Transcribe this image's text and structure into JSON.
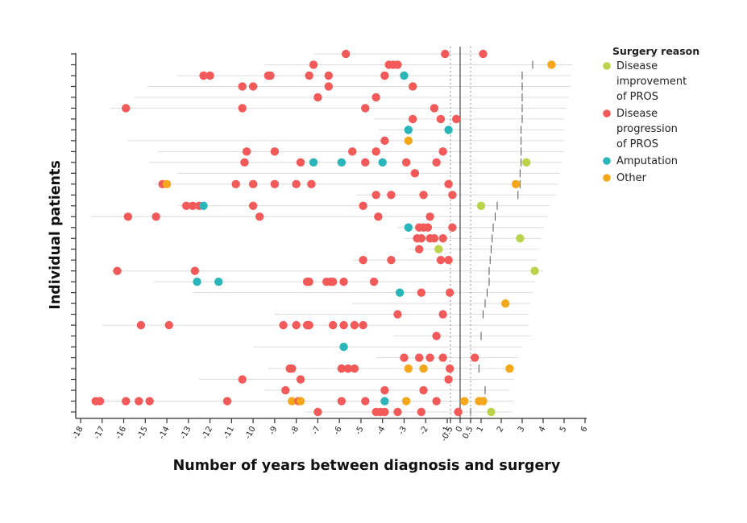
{
  "chart_data": {
    "type": "scatter",
    "xlabel": "Number of years between diagnosis and surgery",
    "ylabel": "Individual patients",
    "xticks": [
      {
        "v": -18,
        "label": "-18"
      },
      {
        "v": -17,
        "label": "-17"
      },
      {
        "v": -16,
        "label": "-16"
      },
      {
        "v": -15,
        "label": "-15"
      },
      {
        "v": -14,
        "label": "-14"
      },
      {
        "v": -13,
        "label": "-13"
      },
      {
        "v": -12,
        "label": "-12"
      },
      {
        "v": -11,
        "label": "-11"
      },
      {
        "v": -10,
        "label": "-10"
      },
      {
        "v": -9,
        "label": "-9"
      },
      {
        "v": -8,
        "label": "-8"
      },
      {
        "v": -7,
        "label": "-7"
      },
      {
        "v": -6,
        "label": "-6"
      },
      {
        "v": -5,
        "label": "-5"
      },
      {
        "v": -4,
        "label": "-4"
      },
      {
        "v": -3,
        "label": "-3"
      },
      {
        "v": -2,
        "label": "-2"
      },
      {
        "v": -1,
        "label": "-1"
      },
      {
        "v": -0.5,
        "label": "-0.5"
      },
      {
        "v": 0,
        "label": "0"
      },
      {
        "v": 0.5,
        "label": "0.5"
      },
      {
        "v": 1,
        "label": "1"
      },
      {
        "v": 2,
        "label": "2"
      },
      {
        "v": 3,
        "label": "3"
      },
      {
        "v": 4,
        "label": "4"
      },
      {
        "v": 5,
        "label": "5"
      },
      {
        "v": 6,
        "label": "6"
      }
    ],
    "xlim": [
      -18,
      6
    ],
    "vlines": [
      -0.5,
      0,
      0.5
    ],
    "legend": {
      "title": "Surgery reason",
      "position": "right",
      "items": [
        {
          "key": "improvement",
          "lines": [
            "Disease",
            "improvement",
            "of PROS"
          ],
          "color": "#b9d44a"
        },
        {
          "key": "progression",
          "lines": [
            "Disease",
            "progression",
            "of PROS"
          ],
          "color": "#f25a5a"
        },
        {
          "key": "amputation",
          "lines": [
            "Amputation"
          ],
          "color": "#2ab6b8"
        },
        {
          "key": "other",
          "lines": [
            "Other"
          ],
          "color": "#f5a71c"
        }
      ]
    },
    "patients": [
      {
        "range": [
          -7.2,
          1.3
        ],
        "end": null,
        "points": [
          [
            -5.7,
            "progression"
          ],
          [
            -1.1,
            "progression"
          ],
          [
            1.1,
            "progression"
          ]
        ]
      },
      {
        "range": [
          -9.5,
          5.4
        ],
        "end": 3.5,
        "points": [
          [
            -7.2,
            "progression"
          ],
          [
            -3.7,
            "progression"
          ],
          [
            -3.5,
            "progression"
          ],
          [
            -3.3,
            "progression"
          ],
          [
            4.4,
            "other"
          ]
        ]
      },
      {
        "range": [
          -13.5,
          5.3
        ],
        "end": 3.0,
        "points": [
          [
            -12.3,
            "progression"
          ],
          [
            -12.0,
            "progression"
          ],
          [
            -9.3,
            "progression"
          ],
          [
            -9.2,
            "progression"
          ],
          [
            -7.4,
            "progression"
          ],
          [
            -6.5,
            "progression"
          ],
          [
            -3.9,
            "progression"
          ],
          [
            -3.0,
            "amputation"
          ]
        ]
      },
      {
        "range": [
          -14.9,
          5.3
        ],
        "end": 3.0,
        "points": [
          [
            -10.5,
            "progression"
          ],
          [
            -10.0,
            "progression"
          ],
          [
            -6.5,
            "progression"
          ],
          [
            -2.6,
            "progression"
          ]
        ]
      },
      {
        "range": [
          -15.5,
          5.2
        ],
        "end": 3.0,
        "points": [
          [
            -7.0,
            "progression"
          ],
          [
            -4.3,
            "progression"
          ]
        ]
      },
      {
        "range": [
          -16.6,
          5.1
        ],
        "end": 3.0,
        "points": [
          [
            -15.9,
            "progression"
          ],
          [
            -10.5,
            "progression"
          ],
          [
            -4.8,
            "progression"
          ],
          [
            -1.6,
            "progression"
          ]
        ]
      },
      {
        "range": [
          -4.4,
          5.0
        ],
        "end": 3.0,
        "points": [
          [
            -2.6,
            "progression"
          ],
          [
            -1.3,
            "progression"
          ],
          [
            -0.2,
            "progression"
          ]
        ]
      },
      {
        "range": [
          -4.2,
          5.0
        ],
        "end": 2.95,
        "points": [
          [
            -2.8,
            "amputation"
          ],
          [
            -0.8,
            "amputation"
          ]
        ]
      },
      {
        "range": [
          -15.8,
          5.0
        ],
        "end": 2.95,
        "points": [
          [
            -3.9,
            "progression"
          ],
          [
            -2.8,
            "other"
          ]
        ]
      },
      {
        "range": [
          -14.4,
          5.0
        ],
        "end": 2.95,
        "points": [
          [
            -10.3,
            "progression"
          ],
          [
            -9.0,
            "progression"
          ],
          [
            -5.4,
            "progression"
          ],
          [
            -4.3,
            "progression"
          ],
          [
            -1.2,
            "progression"
          ]
        ]
      },
      {
        "range": [
          -14.8,
          4.9
        ],
        "end": 2.95,
        "points": [
          [
            -10.4,
            "progression"
          ],
          [
            -7.8,
            "progression"
          ],
          [
            -7.2,
            "amputation"
          ],
          [
            -5.9,
            "amputation"
          ],
          [
            -4.8,
            "progression"
          ],
          [
            -4.0,
            "amputation"
          ],
          [
            -2.9,
            "progression"
          ],
          [
            -1.5,
            "progression"
          ],
          [
            3.2,
            "improvement"
          ]
        ]
      },
      {
        "range": [
          -13.5,
          4.8
        ],
        "end": 2.9,
        "points": [
          [
            -2.5,
            "progression"
          ]
        ]
      },
      {
        "range": [
          -14.6,
          4.7
        ],
        "end": 2.9,
        "points": [
          [
            -14.2,
            "progression"
          ],
          [
            -14.0,
            "other"
          ],
          [
            -10.8,
            "progression"
          ],
          [
            -10.0,
            "progression"
          ],
          [
            -9.0,
            "progression"
          ],
          [
            -8.0,
            "progression"
          ],
          [
            -7.3,
            "progression"
          ],
          [
            -0.8,
            "progression"
          ],
          [
            2.7,
            "other"
          ]
        ]
      },
      {
        "range": [
          -5.2,
          4.6
        ],
        "end": 2.8,
        "points": [
          [
            -4.3,
            "progression"
          ],
          [
            -3.6,
            "progression"
          ],
          [
            -2.1,
            "progression"
          ],
          [
            -0.4,
            "progression"
          ]
        ]
      },
      {
        "range": [
          -13.5,
          4.3
        ],
        "end": 1.8,
        "points": [
          [
            -13.1,
            "progression"
          ],
          [
            -12.8,
            "progression"
          ],
          [
            -12.5,
            "progression"
          ],
          [
            -12.3,
            "amputation"
          ],
          [
            -10.0,
            "progression"
          ],
          [
            -4.9,
            "progression"
          ],
          [
            1.0,
            "improvement"
          ]
        ]
      },
      {
        "range": [
          -17.5,
          4.2
        ],
        "end": 1.7,
        "points": [
          [
            -15.8,
            "progression"
          ],
          [
            -14.5,
            "progression"
          ],
          [
            -9.7,
            "progression"
          ],
          [
            -4.2,
            "progression"
          ],
          [
            -1.8,
            "progression"
          ]
        ]
      },
      {
        "range": [
          -3.3,
          4.0
        ],
        "end": 1.6,
        "points": [
          [
            -2.8,
            "amputation"
          ],
          [
            -2.3,
            "progression"
          ],
          [
            -2.1,
            "progression"
          ],
          [
            -1.9,
            "progression"
          ],
          [
            -0.4,
            "progression"
          ]
        ]
      },
      {
        "range": [
          -3.0,
          3.9
        ],
        "end": 1.55,
        "points": [
          [
            -2.4,
            "progression"
          ],
          [
            -2.2,
            "progression"
          ],
          [
            -1.8,
            "progression"
          ],
          [
            -1.6,
            "progression"
          ],
          [
            -1.2,
            "progression"
          ],
          [
            2.9,
            "improvement"
          ]
        ]
      },
      {
        "range": [
          -2.8,
          3.8
        ],
        "end": 1.5,
        "points": [
          [
            -2.3,
            "progression"
          ],
          [
            -1.4,
            "improvement"
          ]
        ]
      },
      {
        "range": [
          -5.4,
          3.7
        ],
        "end": 1.45,
        "points": [
          [
            -4.9,
            "progression"
          ],
          [
            -3.6,
            "progression"
          ],
          [
            -1.3,
            "progression"
          ],
          [
            -0.8,
            "progression"
          ]
        ]
      },
      {
        "range": [
          -16.6,
          4.0
        ],
        "end": 1.4,
        "points": [
          [
            -16.3,
            "progression"
          ],
          [
            -12.7,
            "progression"
          ],
          [
            3.6,
            "improvement"
          ]
        ]
      },
      {
        "range": [
          -14.6,
          3.6
        ],
        "end": 1.4,
        "points": [
          [
            -12.6,
            "amputation"
          ],
          [
            -11.6,
            "amputation"
          ],
          [
            -7.5,
            "progression"
          ],
          [
            -7.4,
            "progression"
          ],
          [
            -6.6,
            "progression"
          ],
          [
            -6.4,
            "progression"
          ],
          [
            -6.3,
            "progression"
          ],
          [
            -5.8,
            "progression"
          ],
          [
            -4.4,
            "progression"
          ]
        ]
      },
      {
        "range": [
          -12.8,
          3.5
        ],
        "end": 1.3,
        "points": [
          [
            -3.2,
            "amputation"
          ],
          [
            -2.2,
            "progression"
          ],
          [
            -0.6,
            "progression"
          ]
        ]
      },
      {
        "range": [
          -5.4,
          3.4
        ],
        "end": 1.2,
        "points": [
          [
            2.2,
            "other"
          ]
        ]
      },
      {
        "range": [
          -9.0,
          3.3
        ],
        "end": 1.1,
        "points": [
          [
            -3.3,
            "progression"
          ],
          [
            -1.2,
            "progression"
          ]
        ]
      },
      {
        "range": [
          -17.0,
          3.3
        ],
        "end": null,
        "points": [
          [
            -15.2,
            "progression"
          ],
          [
            -13.9,
            "progression"
          ],
          [
            -8.6,
            "progression"
          ],
          [
            -8.0,
            "progression"
          ],
          [
            -7.5,
            "progression"
          ],
          [
            -7.4,
            "progression"
          ],
          [
            -6.3,
            "progression"
          ],
          [
            -5.8,
            "progression"
          ],
          [
            -5.3,
            "progression"
          ],
          [
            -4.9,
            "progression"
          ]
        ]
      },
      {
        "range": [
          -3.5,
          3.4
        ],
        "end": 1.0,
        "points": [
          [
            -1.5,
            "progression"
          ]
        ]
      },
      {
        "range": [
          -10.0,
          3.0
        ],
        "end": null,
        "points": [
          [
            -5.8,
            "amputation"
          ]
        ]
      },
      {
        "range": [
          -4.3,
          2.8
        ],
        "end": null,
        "points": [
          [
            -3.0,
            "progression"
          ],
          [
            -2.3,
            "progression"
          ],
          [
            -1.8,
            "progression"
          ],
          [
            -1.2,
            "progression"
          ],
          [
            0.7,
            "progression"
          ]
        ]
      },
      {
        "range": [
          -9.3,
          2.6
        ],
        "end": 0.9,
        "points": [
          [
            -8.3,
            "progression"
          ],
          [
            -8.2,
            "progression"
          ],
          [
            -5.9,
            "progression"
          ],
          [
            -5.6,
            "progression"
          ],
          [
            -5.3,
            "progression"
          ],
          [
            -2.8,
            "other"
          ],
          [
            -2.1,
            "other"
          ],
          [
            -0.6,
            "progression"
          ],
          [
            2.4,
            "other"
          ]
        ]
      },
      {
        "range": [
          -12.5,
          2.6
        ],
        "end": null,
        "points": [
          [
            -10.5,
            "progression"
          ],
          [
            -7.8,
            "progression"
          ],
          [
            -0.8,
            "progression"
          ]
        ]
      },
      {
        "range": [
          -9.5,
          2.4
        ],
        "end": 1.2,
        "points": [
          [
            -8.5,
            "progression"
          ],
          [
            -3.9,
            "progression"
          ],
          [
            -2.1,
            "progression"
          ]
        ]
      },
      {
        "range": [
          -17.5,
          2.6
        ],
        "end": 1.2,
        "points": [
          [
            -17.3,
            "progression"
          ],
          [
            -17.1,
            "progression"
          ],
          [
            -15.9,
            "progression"
          ],
          [
            -15.3,
            "progression"
          ],
          [
            -14.8,
            "progression"
          ],
          [
            -11.2,
            "progression"
          ],
          [
            -8.2,
            "other"
          ],
          [
            -7.9,
            "progression"
          ],
          [
            -7.8,
            "other"
          ],
          [
            -5.9,
            "progression"
          ],
          [
            -4.8,
            "progression"
          ],
          [
            -3.9,
            "amputation"
          ],
          [
            -2.9,
            "other"
          ],
          [
            -1.5,
            "progression"
          ],
          [
            0.2,
            "other"
          ],
          [
            0.9,
            "other"
          ],
          [
            1.1,
            "other"
          ]
        ]
      },
      {
        "range": [
          -7.6,
          2.5
        ],
        "end": 0.5,
        "points": [
          [
            -7.0,
            "progression"
          ],
          [
            -4.3,
            "progression"
          ],
          [
            -4.1,
            "progression"
          ],
          [
            -3.9,
            "progression"
          ],
          [
            -3.3,
            "progression"
          ],
          [
            -2.2,
            "progression"
          ],
          [
            -0.1,
            "progression"
          ],
          [
            1.5,
            "improvement"
          ]
        ]
      }
    ]
  }
}
